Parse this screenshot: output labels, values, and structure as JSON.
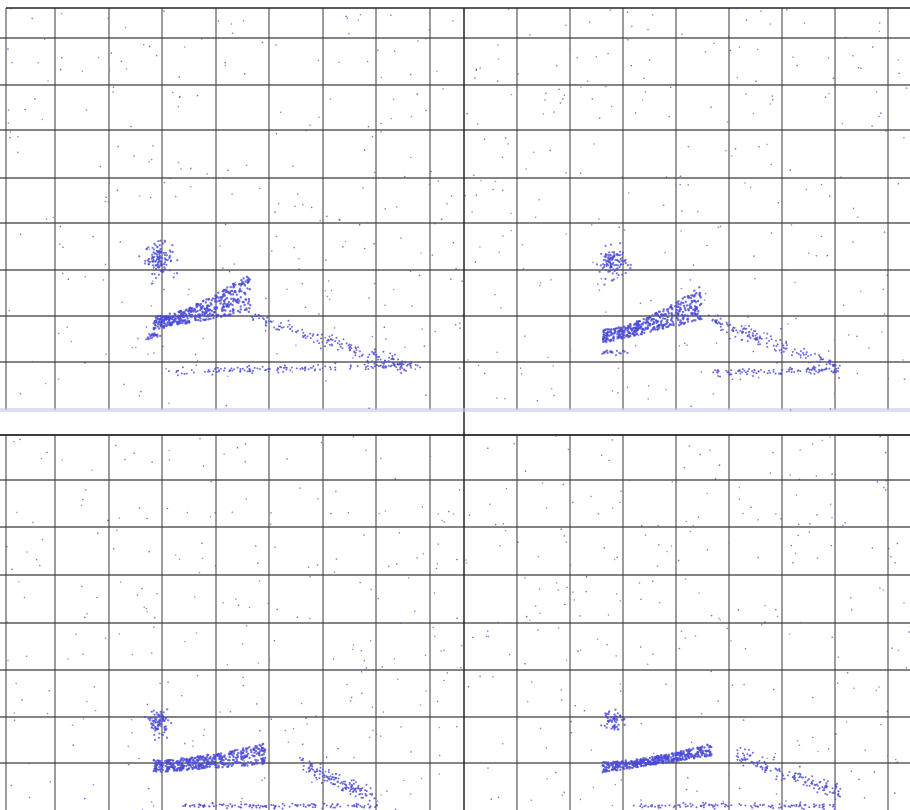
{
  "figure": {
    "panel_count": 4,
    "colors": {
      "background": "#ffffff",
      "grid": "#3a3a3a",
      "points": "#4a4ad8",
      "panel_separator": "#c8c8e8"
    }
  },
  "chart_data": [
    {
      "type": "scatter",
      "panel": "top-left",
      "title": "",
      "xlabel": "",
      "ylabel": "",
      "grid": true,
      "legend": "none",
      "xlim": [
        0,
        9
      ],
      "ylim": [
        0,
        9
      ],
      "clusters": [
        {
          "kind": "blob",
          "cx": 3.0,
          "cy": 3.4,
          "rx": 0.22,
          "ry": 0.28,
          "n": 120
        },
        {
          "kind": "blob",
          "cx": 2.9,
          "cy": 1.65,
          "rx": 0.12,
          "ry": 0.06,
          "n": 25
        },
        {
          "kind": "strip",
          "x0": 2.9,
          "x1": 4.8,
          "ybase0": 1.8,
          "ybase1": 2.2,
          "top0": 2.1,
          "top1": 3.1,
          "n": 420
        },
        {
          "kind": "line",
          "x0": 4.8,
          "y0": 2.1,
          "x1": 7.9,
          "y1": 1.0,
          "w": 0.08,
          "n": 160
        },
        {
          "kind": "line",
          "x0": 3.2,
          "y0": 0.85,
          "x1": 8.1,
          "y1": 1.0,
          "w": 0.04,
          "n": 140
        }
      ],
      "noise_points": 260
    },
    {
      "type": "scatter",
      "panel": "top-right",
      "title": "",
      "xlabel": "",
      "ylabel": "",
      "grid": true,
      "legend": "none",
      "xlim": [
        0,
        9
      ],
      "ylim": [
        0,
        9
      ],
      "clusters": [
        {
          "kind": "blob",
          "cx": 3.0,
          "cy": 3.3,
          "rx": 0.22,
          "ry": 0.28,
          "n": 110
        },
        {
          "kind": "blob",
          "cx": 3.0,
          "cy": 1.3,
          "rx": 0.3,
          "ry": 0.05,
          "n": 20
        },
        {
          "kind": "strip",
          "x0": 2.8,
          "x1": 4.8,
          "ybase0": 1.5,
          "ybase1": 2.0,
          "top0": 1.8,
          "top1": 2.8,
          "n": 420
        },
        {
          "kind": "line",
          "x0": 5.0,
          "y0": 2.0,
          "x1": 7.6,
          "y1": 0.9,
          "w": 0.08,
          "n": 160
        },
        {
          "kind": "line",
          "x0": 5.0,
          "y0": 0.85,
          "x1": 7.5,
          "y1": 0.9,
          "w": 0.04,
          "n": 90
        }
      ],
      "noise_points": 260
    },
    {
      "type": "scatter",
      "panel": "bottom-left",
      "title": "",
      "xlabel": "",
      "ylabel": "",
      "grid": true,
      "legend": "none",
      "xlim": [
        0,
        9
      ],
      "ylim": [
        0,
        9
      ],
      "clusters": [
        {
          "kind": "blob",
          "cx": 3.0,
          "cy": 2.1,
          "rx": 0.15,
          "ry": 0.25,
          "n": 90
        },
        {
          "kind": "strip",
          "x0": 2.9,
          "x1": 5.1,
          "ybase0": 0.9,
          "ybase1": 1.1,
          "top0": 1.2,
          "top1": 1.6,
          "n": 420
        },
        {
          "kind": "line",
          "x0": 5.8,
          "y0": 1.1,
          "x1": 7.2,
          "y1": 0.3,
          "w": 0.1,
          "n": 140
        },
        {
          "kind": "line",
          "x0": 3.5,
          "y0": 0.1,
          "x1": 7.3,
          "y1": 0.1,
          "w": 0.03,
          "n": 120
        }
      ],
      "noise_points": 260
    },
    {
      "type": "scatter",
      "panel": "bottom-right",
      "title": "",
      "xlabel": "",
      "ylabel": "",
      "grid": true,
      "legend": "none",
      "xlim": [
        0,
        9
      ],
      "ylim": [
        0,
        9
      ],
      "clusters": [
        {
          "kind": "blob",
          "cx": 3.0,
          "cy": 2.2,
          "rx": 0.15,
          "ry": 0.22,
          "n": 60
        },
        {
          "kind": "strip",
          "x0": 2.8,
          "x1": 5.0,
          "ybase0": 0.9,
          "ybase1": 1.3,
          "top0": 1.15,
          "top1": 1.6,
          "n": 420
        },
        {
          "kind": "line",
          "x0": 5.5,
          "y0": 1.3,
          "x1": 7.6,
          "y1": 0.4,
          "w": 0.1,
          "n": 150
        },
        {
          "kind": "line",
          "x0": 3.5,
          "y0": 0.1,
          "x1": 7.5,
          "y1": 0.1,
          "w": 0.03,
          "n": 110
        }
      ],
      "noise_points": 260
    }
  ]
}
